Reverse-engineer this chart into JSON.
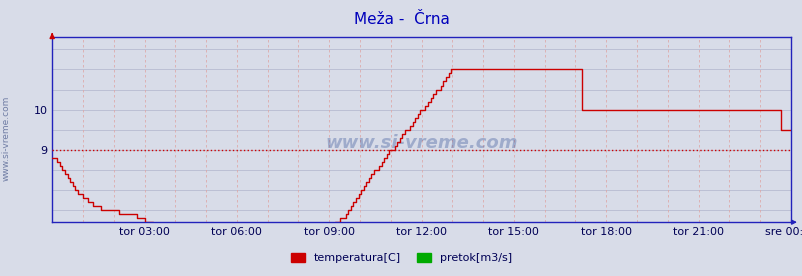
{
  "title": "Meža -  Črna",
  "title_color": "#0000bb",
  "bg_color": "#d8dce8",
  "plot_bg_color": "#d8dce8",
  "line_color": "#cc0000",
  "dotted_line_color": "#cc0000",
  "dotted_line_y": 9.0,
  "axis_color": "#2222bb",
  "grid_h_color": "#b0b4cc",
  "grid_v_color": "#ddaaaa",
  "watermark": "www.si-vreme.com",
  "watermark_color": "#1a3a8a",
  "left_text": "www.si-vreme.com",
  "xlabel_ticks": [
    "tor 03:00",
    "tor 06:00",
    "tor 09:00",
    "tor 12:00",
    "tor 15:00",
    "tor 18:00",
    "tor 21:00",
    "sre 00:00"
  ],
  "yticks": [
    9,
    10
  ],
  "ylim": [
    7.2,
    11.8
  ],
  "xlim_minutes": [
    0,
    1440
  ],
  "legend_labels": [
    "temperatura[C]",
    "pretok[m3/s]"
  ],
  "legend_colors": [
    "#cc0000",
    "#00aa00"
  ],
  "temperature_data": [
    8.8,
    8.8,
    8.7,
    8.6,
    8.5,
    8.4,
    8.3,
    8.2,
    8.1,
    8.0,
    7.9,
    7.9,
    7.8,
    7.8,
    7.7,
    7.7,
    7.6,
    7.6,
    7.6,
    7.5,
    7.5,
    7.5,
    7.5,
    7.5,
    7.5,
    7.5,
    7.4,
    7.4,
    7.4,
    7.4,
    7.4,
    7.4,
    7.4,
    7.3,
    7.3,
    7.3,
    7.2,
    7.2,
    7.2,
    7.1,
    7.1,
    7.1,
    7.0,
    7.0,
    7.0,
    7.0,
    7.0,
    7.0,
    7.0,
    7.0,
    7.0,
    7.0,
    7.0,
    7.0,
    7.0,
    7.0,
    7.0,
    7.0,
    7.0,
    7.0,
    7.0,
    7.0,
    7.0,
    7.0,
    7.0,
    7.0,
    7.0,
    7.0,
    7.0,
    7.0,
    7.0,
    7.0,
    7.0,
    7.0,
    7.0,
    7.0,
    7.0,
    7.0,
    7.0,
    7.0,
    7.0,
    7.0,
    7.0,
    7.0,
    7.0,
    7.0,
    7.0,
    7.0,
    7.0,
    7.0,
    7.0,
    7.0,
    7.0,
    7.0,
    7.0,
    7.0,
    7.0,
    7.0,
    7.0,
    7.0,
    7.0,
    7.0,
    7.0,
    7.0,
    7.0,
    7.0,
    7.0,
    7.0,
    7.1,
    7.1,
    7.2,
    7.2,
    7.3,
    7.3,
    7.4,
    7.5,
    7.6,
    7.7,
    7.8,
    7.9,
    8.0,
    8.1,
    8.2,
    8.3,
    8.4,
    8.5,
    8.5,
    8.6,
    8.7,
    8.8,
    8.9,
    9.0,
    9.0,
    9.1,
    9.2,
    9.3,
    9.4,
    9.5,
    9.5,
    9.6,
    9.7,
    9.8,
    9.9,
    10.0,
    10.0,
    10.1,
    10.2,
    10.3,
    10.4,
    10.5,
    10.5,
    10.6,
    10.7,
    10.8,
    10.9,
    11.0,
    11.0,
    11.0,
    11.0,
    11.0,
    11.0,
    11.0,
    11.0,
    11.0,
    11.0,
    11.0,
    11.0,
    11.0,
    11.0,
    11.0,
    11.0,
    11.0,
    11.0,
    11.0,
    11.0,
    11.0,
    11.0,
    11.0,
    11.0,
    11.0,
    11.0,
    11.0,
    11.0,
    11.0,
    11.0,
    11.0,
    11.0,
    11.0,
    11.0,
    11.0,
    11.0,
    11.0,
    11.0,
    11.0,
    11.0,
    11.0,
    11.0,
    11.0,
    11.0,
    11.0,
    11.0,
    11.0,
    11.0,
    11.0,
    11.0,
    11.0,
    10.0,
    10.0,
    10.0,
    10.0,
    10.0,
    10.0,
    10.0,
    10.0,
    10.0,
    10.0,
    10.0,
    10.0,
    10.0,
    10.0,
    10.0,
    10.0,
    10.0,
    10.0,
    10.0,
    10.0,
    10.0,
    10.0,
    10.0,
    10.0,
    10.0,
    10.0,
    10.0,
    10.0,
    10.0,
    10.0,
    10.0,
    10.0,
    10.0,
    10.0,
    10.0,
    10.0,
    10.0,
    10.0,
    10.0,
    10.0,
    10.0,
    10.0,
    10.0,
    10.0,
    10.0,
    10.0,
    10.0,
    10.0,
    10.0,
    10.0,
    10.0,
    10.0,
    10.0,
    10.0,
    10.0,
    10.0,
    10.0,
    10.0,
    10.0,
    10.0,
    10.0,
    10.0,
    10.0,
    10.0,
    10.0,
    10.0,
    10.0,
    10.0,
    10.0,
    10.0,
    10.0,
    10.0,
    10.0,
    10.0,
    10.0,
    10.0,
    10.0,
    9.5,
    9.5,
    9.5,
    9.5,
    9.5
  ],
  "tick_label_color": "#000055",
  "tick_label_fontsize": 8,
  "n_points": 288
}
